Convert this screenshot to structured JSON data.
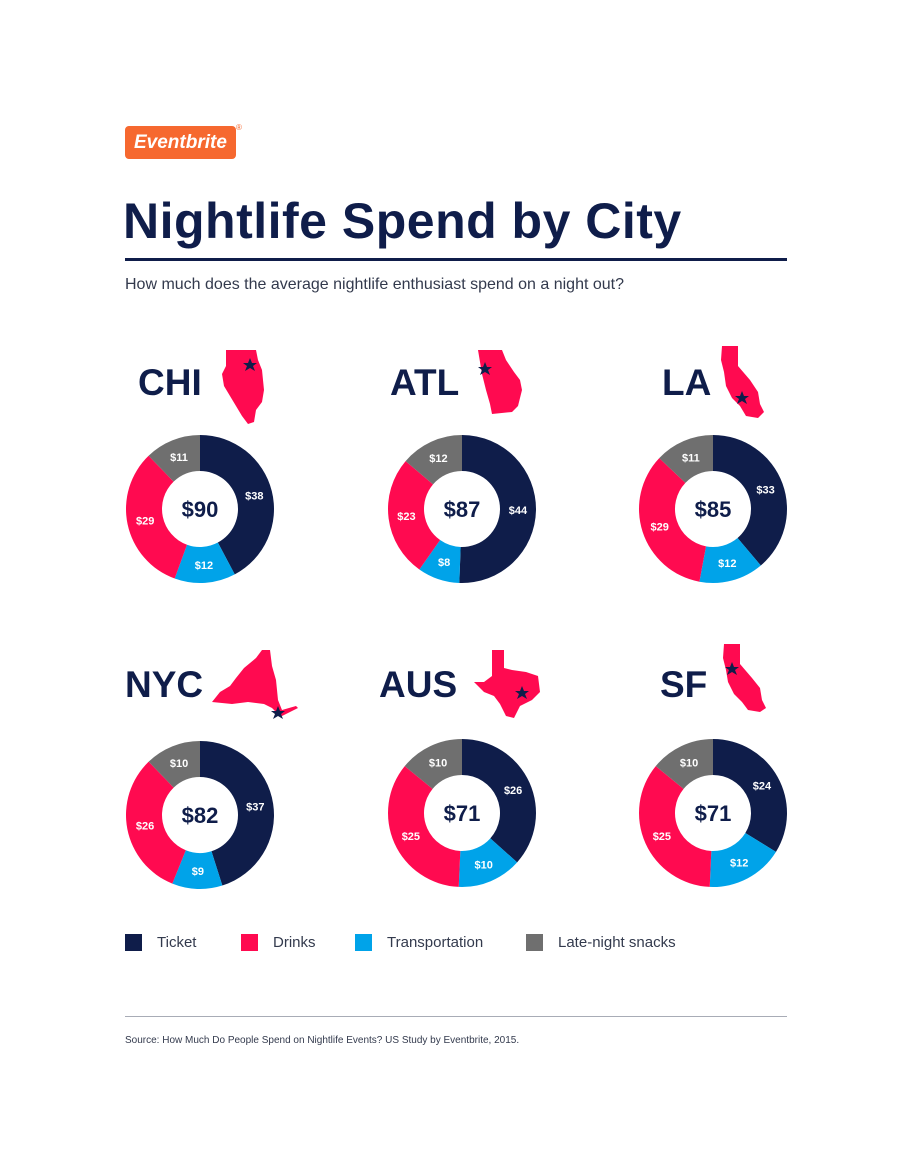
{
  "brand": {
    "logo_text": "Eventbrite",
    "registered_mark": "®"
  },
  "header": {
    "title": "Nightlife Spend by City",
    "subtitle": "How much does the average nightlife enthusiast spend on a night out?"
  },
  "colors": {
    "Ticket": "#0f1d4a",
    "Drinks": "#ff0a50",
    "Transportation": "#00a3e9",
    "Late-night snacks": "#6f6f6f",
    "text": "#0f1d4a",
    "accent": "#f6682f"
  },
  "legend": [
    "Ticket",
    "Drinks",
    "Transportation",
    "Late-night snacks"
  ],
  "chart_data": [
    {
      "type": "pie",
      "city": "CHI",
      "state_icon": "illinois-map-icon",
      "total_label": "$90",
      "categories": [
        "Ticket",
        "Transportation",
        "Drinks",
        "Late-night snacks"
      ],
      "values": [
        38,
        12,
        29,
        11
      ],
      "labels": [
        "$38",
        "$12",
        "$29",
        "$11"
      ]
    },
    {
      "type": "pie",
      "city": "ATL",
      "state_icon": "georgia-map-icon",
      "total_label": "$87",
      "categories": [
        "Ticket",
        "Transportation",
        "Drinks",
        "Late-night snacks"
      ],
      "values": [
        44,
        8,
        23,
        12
      ],
      "labels": [
        "$44",
        "$8",
        "$23",
        "$12"
      ]
    },
    {
      "type": "pie",
      "city": "LA",
      "state_icon": "california-map-icon",
      "total_label": "$85",
      "categories": [
        "Ticket",
        "Transportation",
        "Drinks",
        "Late-night snacks"
      ],
      "values": [
        33,
        12,
        29,
        11
      ],
      "labels": [
        "$33",
        "$12",
        "$29",
        "$11"
      ]
    },
    {
      "type": "pie",
      "city": "NYC",
      "state_icon": "new-york-map-icon",
      "total_label": "$82",
      "categories": [
        "Ticket",
        "Transportation",
        "Drinks",
        "Late-night snacks"
      ],
      "values": [
        37,
        9,
        26,
        10
      ],
      "labels": [
        "$37",
        "$9",
        "$26",
        "$10"
      ]
    },
    {
      "type": "pie",
      "city": "AUS",
      "state_icon": "texas-map-icon",
      "total_label": "$71",
      "categories": [
        "Ticket",
        "Transportation",
        "Drinks",
        "Late-night snacks"
      ],
      "values": [
        26,
        10,
        25,
        10
      ],
      "labels": [
        "$26",
        "$10",
        "$25",
        "$10"
      ]
    },
    {
      "type": "pie",
      "city": "SF",
      "state_icon": "california-map-icon",
      "total_label": "$71",
      "categories": [
        "Ticket",
        "Transportation",
        "Drinks",
        "Late-night snacks"
      ],
      "values": [
        24,
        12,
        25,
        10
      ],
      "labels": [
        "$24",
        "$12",
        "$25",
        "$10"
      ]
    }
  ],
  "footer": {
    "source": "Source: How Much Do People Spend on Nightlife Events? US Study by Eventbrite, 2015."
  }
}
